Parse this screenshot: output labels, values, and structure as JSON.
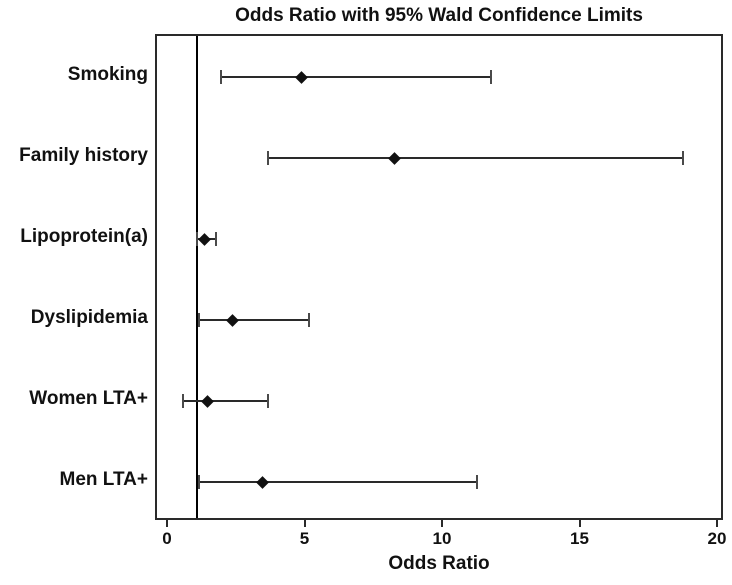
{
  "title": "Odds Ratio with 95% Wald Confidence Limits",
  "chart_data": {
    "type": "scatter",
    "subtype": "forest-plot",
    "title": "Odds Ratio with 95% Wald Confidence Limits",
    "xlabel": "Odds Ratio",
    "ylabel": "",
    "xlim": [
      0,
      20
    ],
    "xticks": [
      0,
      5,
      10,
      15,
      20
    ],
    "reference_line_x": 1,
    "grid": false,
    "legend": "none",
    "categories": [
      "Smoking",
      "Family history",
      "Lipoprotein(a)",
      "Dyslipidemia",
      "Women LTA+",
      "Men LTA+"
    ],
    "rows": [
      {
        "label": "Smoking",
        "estimate": 4.8,
        "ci_lower": 1.9,
        "ci_upper": 11.7
      },
      {
        "label": "Family history",
        "estimate": 8.2,
        "ci_lower": 3.6,
        "ci_upper": 18.7
      },
      {
        "label": "Lipoprotein(a)",
        "estimate": 1.3,
        "ci_lower": 1.0,
        "ci_upper": 1.7
      },
      {
        "label": "Dyslipidemia",
        "estimate": 2.3,
        "ci_lower": 1.1,
        "ci_upper": 5.1
      },
      {
        "label": "Women LTA+",
        "estimate": 1.4,
        "ci_lower": 0.5,
        "ci_upper": 3.6
      },
      {
        "label": "Men LTA+",
        "estimate": 3.4,
        "ci_lower": 1.1,
        "ci_upper": 11.2
      }
    ],
    "colors": {
      "background": "#ffffff",
      "text": "#111111",
      "frame": "#2a2a2a",
      "ci_line": "#2a2a2a",
      "ci_cap": "#4a4a4a",
      "marker": "#111111",
      "reference_line": "#000000"
    }
  }
}
